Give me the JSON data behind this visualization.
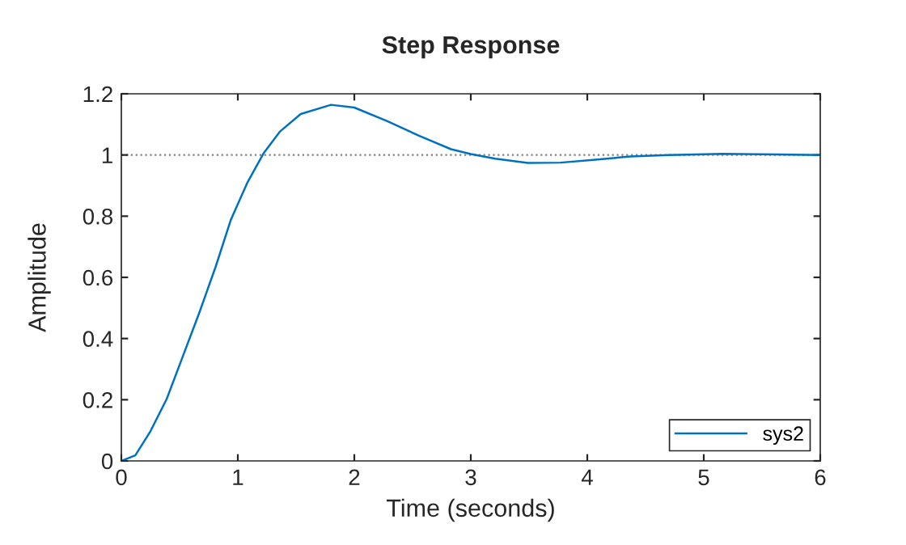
{
  "chart_data": {
    "type": "line",
    "title": "Step Response",
    "xlabel": "Time (seconds)",
    "ylabel": "Amplitude",
    "series": [
      {
        "name": "sys2",
        "color": "#0072bd",
        "x": [
          0,
          0.12,
          0.25,
          0.39,
          0.53,
          0.67,
          0.81,
          0.94,
          1.08,
          1.22,
          1.36,
          1.54,
          1.8,
          2.0,
          2.28,
          2.56,
          2.83,
          3.0,
          3.21,
          3.49,
          3.77,
          4.05,
          4.37,
          4.7,
          5.16,
          5.63,
          6.0
        ],
        "values": [
          0,
          0.018,
          0.097,
          0.203,
          0.344,
          0.485,
          0.635,
          0.788,
          0.908,
          1.005,
          1.076,
          1.134,
          1.164,
          1.155,
          1.111,
          1.062,
          1.019,
          1.003,
          0.988,
          0.974,
          0.975,
          0.984,
          0.995,
          1.0,
          1.004,
          1.002,
          1.0
        ]
      }
    ],
    "ref_lines": [
      {
        "axis": "y",
        "value": 1,
        "color": "#808080",
        "line_style": "dotted"
      }
    ],
    "xlim": [
      0,
      6
    ],
    "ylim": [
      0,
      1.2
    ],
    "xticks": [
      0,
      1,
      2,
      3,
      4,
      5,
      6
    ],
    "yticks": [
      0,
      0.2,
      0.4,
      0.6,
      0.8,
      1,
      1.2
    ],
    "grid": false,
    "legend": "bottom right",
    "marker": "none",
    "line_style": "solid"
  }
}
